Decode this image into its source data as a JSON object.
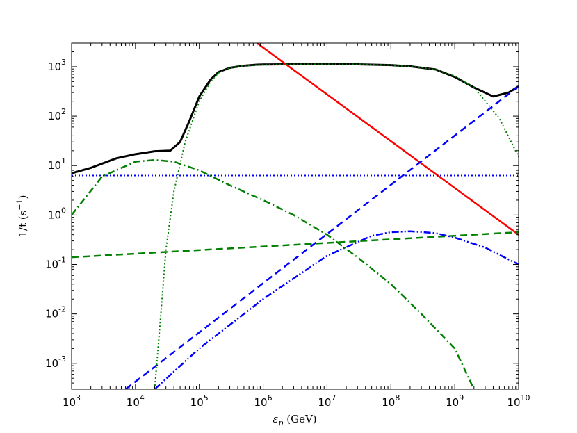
{
  "chart_data": {
    "type": "line",
    "title": "",
    "xlabel": {
      "symbol": "ε",
      "sub": "p",
      "rest": " (GeV)"
    },
    "ylabel": {
      "main": "1/t (s",
      "sup": "−1",
      "close": ")"
    },
    "x_scale": "log",
    "y_scale": "log",
    "xlim": [
      1000,
      10000000000
    ],
    "ylim": [
      0.0003,
      3000
    ],
    "grid": false,
    "legend": "none",
    "x_ticks": [
      {
        "value": 1000,
        "base": "10",
        "exp": "3"
      },
      {
        "value": 10000,
        "base": "10",
        "exp": "4"
      },
      {
        "value": 100000,
        "base": "10",
        "exp": "5"
      },
      {
        "value": 1000000,
        "base": "10",
        "exp": "6"
      },
      {
        "value": 10000000,
        "base": "10",
        "exp": "7"
      },
      {
        "value": 100000000,
        "base": "10",
        "exp": "8"
      },
      {
        "value": 1000000000,
        "base": "10",
        "exp": "9"
      },
      {
        "value": 10000000000,
        "base": "10",
        "exp": "10"
      }
    ],
    "y_ticks": [
      {
        "value": 0.001,
        "base": "10",
        "exp": "-3"
      },
      {
        "value": 0.01,
        "base": "10",
        "exp": "-2"
      },
      {
        "value": 0.1,
        "base": "10",
        "exp": "-1"
      },
      {
        "value": 1,
        "base": "10",
        "exp": "0"
      },
      {
        "value": 10,
        "base": "10",
        "exp": "1"
      },
      {
        "value": 100,
        "base": "10",
        "exp": "2"
      },
      {
        "value": 1000,
        "base": "10",
        "exp": "3"
      }
    ],
    "series": [
      {
        "color": "#000000",
        "style": "solid",
        "width": 3,
        "x": [
          1000,
          2000,
          5000,
          10000,
          20000,
          35000,
          50000,
          70000,
          100000,
          150000,
          200000,
          300000,
          500000,
          800000,
          1000000,
          2000000,
          5000000,
          10000000,
          30000000,
          100000000,
          200000000,
          500000000,
          1000000000,
          2000000000,
          4000000000,
          7000000000,
          10000000000
        ],
        "y": [
          7,
          9,
          14,
          17,
          19.5,
          20,
          30,
          80,
          250,
          550,
          780,
          950,
          1050,
          1100,
          1110,
          1120,
          1125,
          1125,
          1120,
          1080,
          1020,
          880,
          620,
          380,
          250,
          300,
          400
        ]
      },
      {
        "color": "#ff0000",
        "style": "solid",
        "width": 2.5,
        "x": [
          800000,
          10000000000
        ],
        "y": [
          3000,
          0.4
        ]
      },
      {
        "color": "#0000ff",
        "style": "dashed",
        "width": 2.5,
        "x": [
          7000,
          10000000000
        ],
        "y": [
          0.0003,
          400
        ]
      },
      {
        "color": "#0000ff",
        "style": "dotted",
        "width": 2,
        "x": [
          1000,
          10000000000
        ],
        "y": [
          6.3,
          6.3
        ]
      },
      {
        "color": "#0000ff",
        "style": "dashdotdot",
        "width": 2.5,
        "x": [
          20000,
          100000,
          1000000,
          10000000,
          50000000,
          100000000,
          200000000,
          500000000,
          1000000000,
          3000000000,
          10000000000
        ],
        "y": [
          0.0003,
          0.002,
          0.02,
          0.15,
          0.38,
          0.45,
          0.47,
          0.43,
          0.35,
          0.22,
          0.1
        ]
      },
      {
        "color": "#008000",
        "style": "dashed",
        "width": 2.5,
        "x": [
          1000,
          10000000000
        ],
        "y": [
          0.14,
          0.45
        ]
      },
      {
        "color": "#008000",
        "style": "dashdot",
        "width": 2.5,
        "x": [
          1000,
          3000,
          10000,
          20000,
          40000,
          100000,
          300000,
          1000000,
          3000000,
          10000000,
          30000000,
          100000000,
          300000000,
          1000000000,
          2000000000
        ],
        "y": [
          1,
          6,
          12,
          13,
          12,
          8,
          4,
          2,
          1,
          0.4,
          0.14,
          0.04,
          0.01,
          0.002,
          0.0003
        ]
      },
      {
        "color": "#008000",
        "style": "dotted",
        "width": 2,
        "x": [
          20000,
          25000,
          30000,
          40000,
          60000,
          100000,
          150000,
          200000,
          300000,
          500000,
          1000000,
          3000000,
          10000000,
          30000000,
          100000000,
          300000000,
          500000000,
          1000000000,
          2000000000,
          5000000000,
          10000000000
        ],
        "y": [
          0.0003,
          0.01,
          0.2,
          3,
          30,
          200,
          500,
          750,
          950,
          1050,
          1100,
          1120,
          1125,
          1120,
          1080,
          970,
          870,
          650,
          380,
          90,
          15
        ]
      }
    ]
  }
}
